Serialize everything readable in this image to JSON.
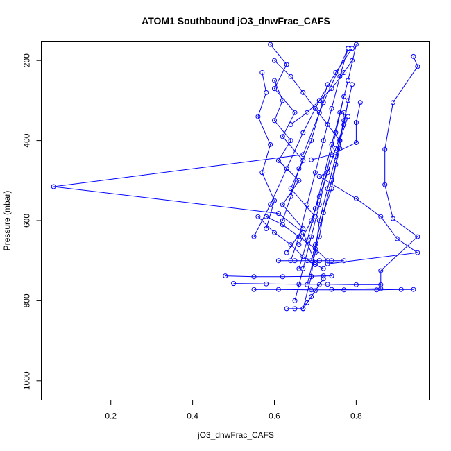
{
  "chart_data": {
    "type": "line",
    "title": "ATOM1 Southbound jO3_dnwFrac_CAFS",
    "xlabel": "jO3_dnwFrac_CAFS",
    "ylabel": "Pressure (mbar)",
    "xlim": [
      0.03,
      0.98
    ],
    "ylim": [
      1048,
      152
    ],
    "y_reversed": true,
    "x_ticks": [
      0.2,
      0.4,
      0.6,
      0.8
    ],
    "x_tick_labels": [
      "0.2",
      "0.4",
      "0.6",
      "0.8"
    ],
    "y_ticks": [
      200,
      400,
      600,
      800,
      1000
    ],
    "y_tick_labels": [
      "200",
      "400",
      "600",
      "800",
      "1000"
    ],
    "grid": false,
    "marker": "open-circle",
    "color": "#0000ff",
    "series": [
      {
        "x": [
          0.94,
          0.95,
          0.89,
          0.87,
          0.87,
          0.89,
          0.95,
          0.86,
          0.86,
          0.74
        ],
        "y": [
          190,
          215,
          305,
          422,
          510,
          595,
          640,
          725,
          770,
          772
        ]
      },
      {
        "x": [
          0.81,
          0.8,
          0.8,
          0.74,
          0.69
        ],
        "y": [
          305,
          355,
          405,
          435,
          448
        ]
      },
      {
        "x": [
          0.78,
          0.72,
          0.67,
          0.06,
          0.61,
          0.67,
          0.7
        ],
        "y": [
          170,
          305,
          435,
          515,
          582,
          630,
          705
        ]
      },
      {
        "x": [
          0.71,
          0.8,
          0.86,
          0.9,
          0.95,
          0.73
        ],
        "y": [
          490,
          545,
          590,
          645,
          680,
          708
        ]
      },
      {
        "x": [
          0.48,
          0.55,
          0.62,
          0.69,
          0.72,
          0.74
        ],
        "y": [
          738,
          740,
          740,
          739,
          738,
          738
        ]
      },
      {
        "x": [
          0.5,
          0.58,
          0.66,
          0.73,
          0.8,
          0.86
        ],
        "y": [
          757,
          758,
          759,
          759,
          760,
          760
        ]
      },
      {
        "x": [
          0.55,
          0.61,
          0.69,
          0.77,
          0.85,
          0.91,
          0.94
        ],
        "y": [
          772,
          772,
          773,
          773,
          773,
          772,
          772
        ]
      },
      {
        "x": [
          0.56,
          0.6,
          0.64,
          0.67,
          0.7,
          0.72
        ],
        "y": [
          590,
          630,
          660,
          690,
          710,
          720
        ]
      },
      {
        "x": [
          0.6,
          0.62,
          0.6,
          0.64,
          0.61,
          0.66,
          0.62,
          0.67,
          0.63
        ],
        "y": [
          250,
          300,
          350,
          400,
          450,
          500,
          560,
          620,
          680
        ]
      },
      {
        "x": [
          0.57,
          0.58,
          0.56,
          0.59,
          0.57,
          0.6,
          0.58
        ],
        "y": [
          230,
          280,
          340,
          410,
          480,
          550,
          620
        ]
      },
      {
        "x": [
          0.64,
          0.66,
          0.68,
          0.7,
          0.72,
          0.74,
          0.76,
          0.78
        ],
        "y": [
          700,
          640,
          560,
          480,
          400,
          320,
          240,
          170
        ]
      },
      {
        "x": [
          0.66,
          0.68,
          0.7,
          0.72,
          0.74,
          0.76,
          0.78,
          0.8
        ],
        "y": [
          720,
          650,
          570,
          490,
          410,
          330,
          250,
          160
        ]
      },
      {
        "x": [
          0.68,
          0.7,
          0.71,
          0.73,
          0.75,
          0.77,
          0.79
        ],
        "y": [
          760,
          680,
          600,
          520,
          440,
          350,
          260
        ]
      },
      {
        "x": [
          0.65,
          0.67,
          0.69,
          0.71,
          0.73,
          0.75,
          0.77
        ],
        "y": [
          800,
          720,
          640,
          560,
          470,
          380,
          290
        ]
      },
      {
        "x": [
          0.67,
          0.69,
          0.7,
          0.72,
          0.74,
          0.76,
          0.77
        ],
        "y": [
          820,
          740,
          660,
          580,
          500,
          420,
          330
        ]
      },
      {
        "x": [
          0.62,
          0.64,
          0.66,
          0.69,
          0.71,
          0.73
        ],
        "y": [
          600,
          540,
          470,
          400,
          330,
          260
        ]
      },
      {
        "x": [
          0.59,
          0.63,
          0.6,
          0.65,
          0.62,
          0.67,
          0.64,
          0.7
        ],
        "y": [
          160,
          210,
          270,
          330,
          390,
          450,
          520,
          590
        ]
      },
      {
        "x": [
          0.63,
          0.65,
          0.67,
          0.68,
          0.69,
          0.7,
          0.71,
          0.72
        ],
        "y": [
          820,
          820,
          820,
          805,
          790,
          775,
          760,
          745
        ]
      },
      {
        "x": [
          0.61,
          0.65,
          0.68,
          0.71,
          0.74,
          0.77
        ],
        "y": [
          700,
          700,
          700,
          700,
          700,
          700
        ]
      },
      {
        "x": [
          0.58,
          0.62,
          0.66,
          0.7,
          0.73
        ],
        "y": [
          590,
          610,
          640,
          670,
          700
        ]
      },
      {
        "x": [
          0.55,
          0.59,
          0.63,
          0.67,
          0.71,
          0.75,
          0.79
        ],
        "y": [
          640,
          560,
          470,
          380,
          300,
          230,
          170
        ]
      },
      {
        "x": [
          0.64,
          0.68,
          0.71,
          0.74,
          0.77,
          0.79
        ],
        "y": [
          360,
          330,
          300,
          270,
          230,
          200
        ]
      },
      {
        "x": [
          0.6,
          0.64,
          0.67,
          0.7,
          0.73,
          0.76
        ],
        "y": [
          200,
          240,
          280,
          320,
          360,
          400
        ]
      },
      {
        "x": [
          0.66,
          0.69,
          0.71,
          0.73,
          0.75,
          0.77,
          0.78
        ],
        "y": [
          660,
          600,
          540,
          480,
          420,
          360,
          300
        ]
      },
      {
        "x": [
          0.69,
          0.71,
          0.72,
          0.74,
          0.75,
          0.76,
          0.78
        ],
        "y": [
          700,
          640,
          580,
          520,
          460,
          400,
          340
        ]
      }
    ]
  }
}
